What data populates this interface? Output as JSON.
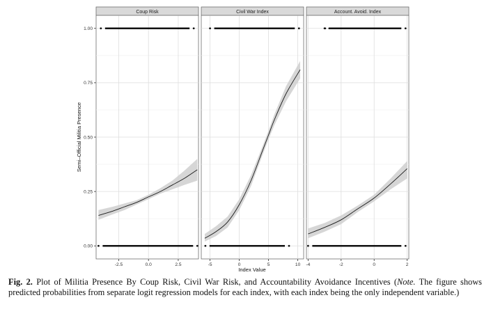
{
  "chart_data": {
    "type": "line",
    "ylabel": "Semi–Official Militia Presence",
    "xlabel": "Index Value",
    "ylim": [
      0,
      1
    ],
    "y_ticks": [
      0.0,
      0.25,
      0.5,
      0.75,
      1.0
    ],
    "y_tick_labels": [
      "0.00",
      "0.25",
      "0.50",
      "0.75",
      "1.00"
    ],
    "grid": true,
    "panels": [
      {
        "title": "Coup Risk",
        "xlim": [
          -4.4,
          4.2
        ],
        "x_ticks": [
          -2.5,
          0.0,
          2.5
        ],
        "x_tick_labels": [
          "-2.5",
          "0.0",
          "2.5"
        ],
        "x": [
          -4.2,
          -3,
          -2,
          -1,
          0,
          1,
          2,
          3,
          4.1
        ],
        "y": [
          0.14,
          0.16,
          0.18,
          0.2,
          0.225,
          0.25,
          0.28,
          0.31,
          0.35
        ],
        "ci_low": [
          0.12,
          0.145,
          0.165,
          0.19,
          0.215,
          0.24,
          0.26,
          0.28,
          0.3
        ],
        "ci_high": [
          0.165,
          0.18,
          0.195,
          0.21,
          0.235,
          0.265,
          0.3,
          0.345,
          0.4
        ],
        "rug_zero_range": [
          -4.2,
          4.1
        ],
        "rug_one_range": [
          -4.0,
          3.8
        ]
      },
      {
        "title": "Civil War Index",
        "xlim": [
          -6.5,
          11
        ],
        "x_ticks": [
          -5,
          0,
          5,
          10
        ],
        "x_tick_labels": [
          "-5",
          "0",
          "5",
          "10"
        ],
        "x": [
          -5.9,
          -4,
          -2,
          0,
          2,
          4,
          5,
          6,
          8,
          10.4
        ],
        "y": [
          0.035,
          0.065,
          0.11,
          0.19,
          0.3,
          0.44,
          0.51,
          0.58,
          0.7,
          0.81
        ],
        "ci_low": [
          0.02,
          0.045,
          0.085,
          0.165,
          0.275,
          0.42,
          0.49,
          0.555,
          0.665,
          0.77
        ],
        "ci_high": [
          0.055,
          0.09,
          0.135,
          0.215,
          0.325,
          0.46,
          0.53,
          0.605,
          0.735,
          0.85
        ],
        "rug_zero_range": [
          -5.8,
          8.5
        ],
        "rug_one_range": [
          -5.0,
          10.2
        ]
      },
      {
        "title": "Account. Avoid. Index",
        "xlim": [
          -4.1,
          2.1
        ],
        "x_ticks": [
          -4,
          -2,
          0,
          2
        ],
        "x_tick_labels": [
          "-4",
          "-2",
          "0",
          "2"
        ],
        "x": [
          -4.0,
          -3,
          -2,
          -1,
          0,
          1,
          2
        ],
        "y": [
          0.055,
          0.085,
          0.12,
          0.17,
          0.22,
          0.285,
          0.355
        ],
        "ci_low": [
          0.035,
          0.065,
          0.1,
          0.155,
          0.205,
          0.26,
          0.31
        ],
        "ci_high": [
          0.08,
          0.105,
          0.14,
          0.185,
          0.235,
          0.31,
          0.39
        ],
        "rug_zero_range": [
          -4.0,
          1.9
        ],
        "rug_one_range": [
          -3.0,
          1.9
        ]
      }
    ]
  },
  "caption": {
    "label": "Fig. 2.",
    "text": "Plot of Militia Presence By Coup Risk, Civil War Risk, and Accountability Avoidance Incentives (",
    "note_word": "Note.",
    "note_text": "The figure shows predicted probabilities from separate logit regression models for each index, with each index being the only independent variable.)"
  }
}
